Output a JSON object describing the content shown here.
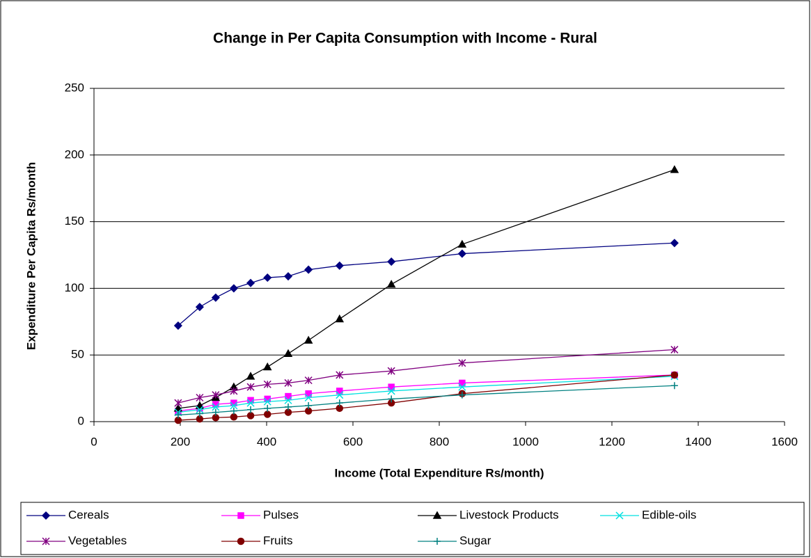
{
  "chart_data": {
    "type": "line",
    "title": "Change in Per Capita Consumption with Income - Rural",
    "xlabel": "Income (Total Expenditure Rs/month)",
    "ylabel": "Expenditure Per Capita Rs/month",
    "x": [
      195,
      245,
      282,
      324,
      363,
      402,
      450,
      497,
      569,
      689,
      853,
      1345
    ],
    "series": [
      {
        "name": "Cereals",
        "color": "#000080",
        "marker": "diamond",
        "values": [
          72,
          86,
          93,
          100,
          104,
          108,
          109,
          114,
          117,
          120,
          126,
          134
        ]
      },
      {
        "name": "Pulses",
        "color": "#ff00ff",
        "marker": "square",
        "values": [
          8,
          10,
          13,
          14,
          16,
          17,
          19,
          21,
          23,
          26,
          29,
          35
        ]
      },
      {
        "name": "Livestock Products",
        "color": "#000000",
        "marker": "triangle",
        "values": [
          10,
          12,
          18,
          26,
          34,
          41,
          51,
          61,
          77,
          103,
          133,
          189
        ]
      },
      {
        "name": "Edible-oils",
        "color": "#00e0e0",
        "marker": "x",
        "values": [
          7,
          9,
          11,
          12,
          14,
          15,
          16,
          18,
          20,
          23,
          26,
          34
        ]
      },
      {
        "name": "Vegetables",
        "color": "#800080",
        "marker": "star",
        "values": [
          14,
          18,
          20,
          23,
          26,
          28,
          29,
          31,
          35,
          38,
          44,
          54
        ]
      },
      {
        "name": "Fruits",
        "color": "#800000",
        "marker": "circle",
        "values": [
          1,
          2,
          3,
          3.5,
          4.5,
          5.5,
          7,
          8,
          10,
          14,
          21,
          35
        ]
      },
      {
        "name": "Sugar",
        "color": "#008080",
        "marker": "plus",
        "values": [
          5,
          6,
          7,
          8,
          9,
          10,
          11,
          12,
          14,
          17,
          20,
          27
        ]
      }
    ],
    "xlim": [
      0,
      1600
    ],
    "xticks": [
      0,
      200,
      400,
      600,
      800,
      1000,
      1200,
      1400,
      1600
    ],
    "ylim": [
      0,
      250
    ],
    "yticks": [
      0,
      50,
      100,
      150,
      200,
      250
    ],
    "grid": true,
    "legend": "bottom"
  }
}
